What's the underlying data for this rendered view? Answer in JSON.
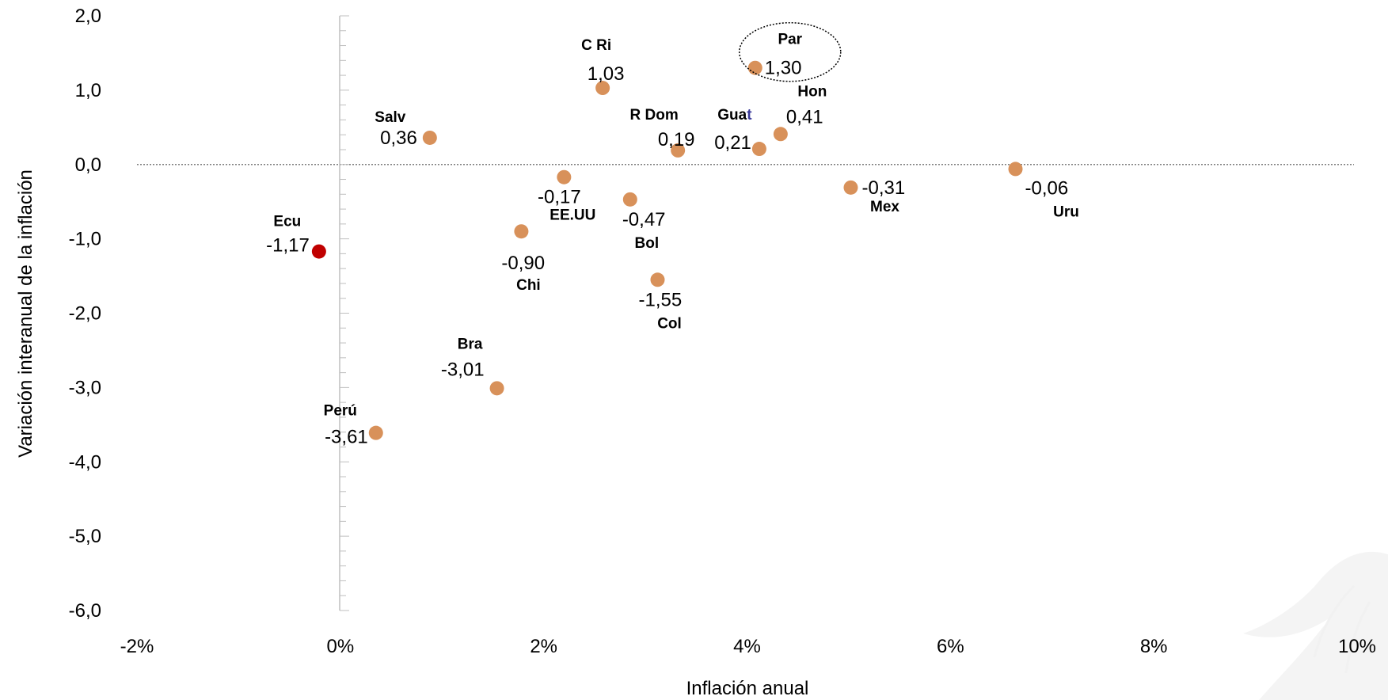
{
  "colors": {
    "point": "#d8915a",
    "highlight": "#c00000",
    "axis": "#bfbfbf",
    "zero_line": "#7f7f7f",
    "text": "#000000",
    "accent_blue": "#3b3b9a"
  },
  "chart_data": {
    "type": "scatter",
    "title": "",
    "xlabel": "Inflación anual",
    "ylabel": "Variación interanual de la inflación",
    "xlim": [
      -2,
      10
    ],
    "ylim": [
      -6,
      2
    ],
    "x_ticks": [
      -2,
      0,
      2,
      4,
      6,
      8,
      10
    ],
    "x_tick_labels": [
      "-2%",
      "0%",
      "2%",
      "4%",
      "6%",
      "8%",
      "10%"
    ],
    "y_ticks": [
      2,
      1,
      0,
      -1,
      -2,
      -3,
      -4,
      -5,
      -6
    ],
    "y_tick_labels": [
      "2,0",
      "1,0",
      "0,0",
      "-1,0",
      "-2,0",
      "-3,0",
      "-4,0",
      "-5,0",
      "-6,0"
    ],
    "grid": false,
    "zero_line": "dotted",
    "points": [
      {
        "name": "Par",
        "x": 4.08,
        "y": 1.3,
        "value_label": "1,30",
        "circled": true
      },
      {
        "name": "C Ri",
        "x": 2.58,
        "y": 1.03,
        "value_label": "1,03"
      },
      {
        "name": "Hon",
        "x": 4.33,
        "y": 0.41,
        "value_label": "0,41"
      },
      {
        "name": "Salv",
        "x": 0.88,
        "y": 0.36,
        "value_label": "0,36"
      },
      {
        "name": "Guat",
        "x": 4.12,
        "y": 0.21,
        "value_label": "0,21"
      },
      {
        "name": "R Dom",
        "x": 3.32,
        "y": 0.19,
        "value_label": "0,19"
      },
      {
        "name": "Uru",
        "x": 6.64,
        "y": -0.06,
        "value_label": "-0,06"
      },
      {
        "name": "EE.UU",
        "x": 2.2,
        "y": -0.17,
        "value_label": "-0,17"
      },
      {
        "name": "Mex",
        "x": 5.02,
        "y": -0.31,
        "value_label": "-0,31"
      },
      {
        "name": "Bol",
        "x": 2.85,
        "y": -0.47,
        "value_label": "-0,47"
      },
      {
        "name": "Chi",
        "x": 1.78,
        "y": -0.9,
        "value_label": "-0,90"
      },
      {
        "name": "Ecu",
        "x": -0.21,
        "y": -1.17,
        "value_label": "-1,17",
        "highlight": true
      },
      {
        "name": "Col",
        "x": 3.12,
        "y": -1.55,
        "value_label": "-1,55"
      },
      {
        "name": "Bra",
        "x": 1.54,
        "y": -3.01,
        "value_label": "-3,01"
      },
      {
        "name": "Perú",
        "x": 0.35,
        "y": -3.61,
        "value_label": "-3,61"
      }
    ]
  }
}
